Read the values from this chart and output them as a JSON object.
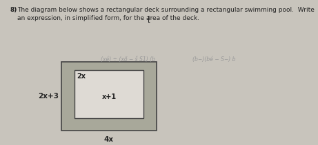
{
  "bg_color": "#c8c4bc",
  "question_number": "8)",
  "question_text": "The diagram below shows a rectangular deck surrounding a rectangular swimming pool.  Write",
  "question_text2": "an expression, in simplified form, for the area of the deck.",
  "answer_bracket": "[",
  "faded_text_top": "(xé) ÷ (xő − š S1) (b",
  "faded_text_right": "(b−)(bé − S−) b",
  "outer_rect_color": "#a8a89a",
  "inner_rect_color": "#dedad4",
  "rect_edge_color": "#444444",
  "text_color": "#222222",
  "faded_color": "#999999",
  "label_outer_left": "2x+3",
  "label_outer_bottom": "4x",
  "label_inner_topleft": "2x",
  "label_inner_center": "x+1"
}
